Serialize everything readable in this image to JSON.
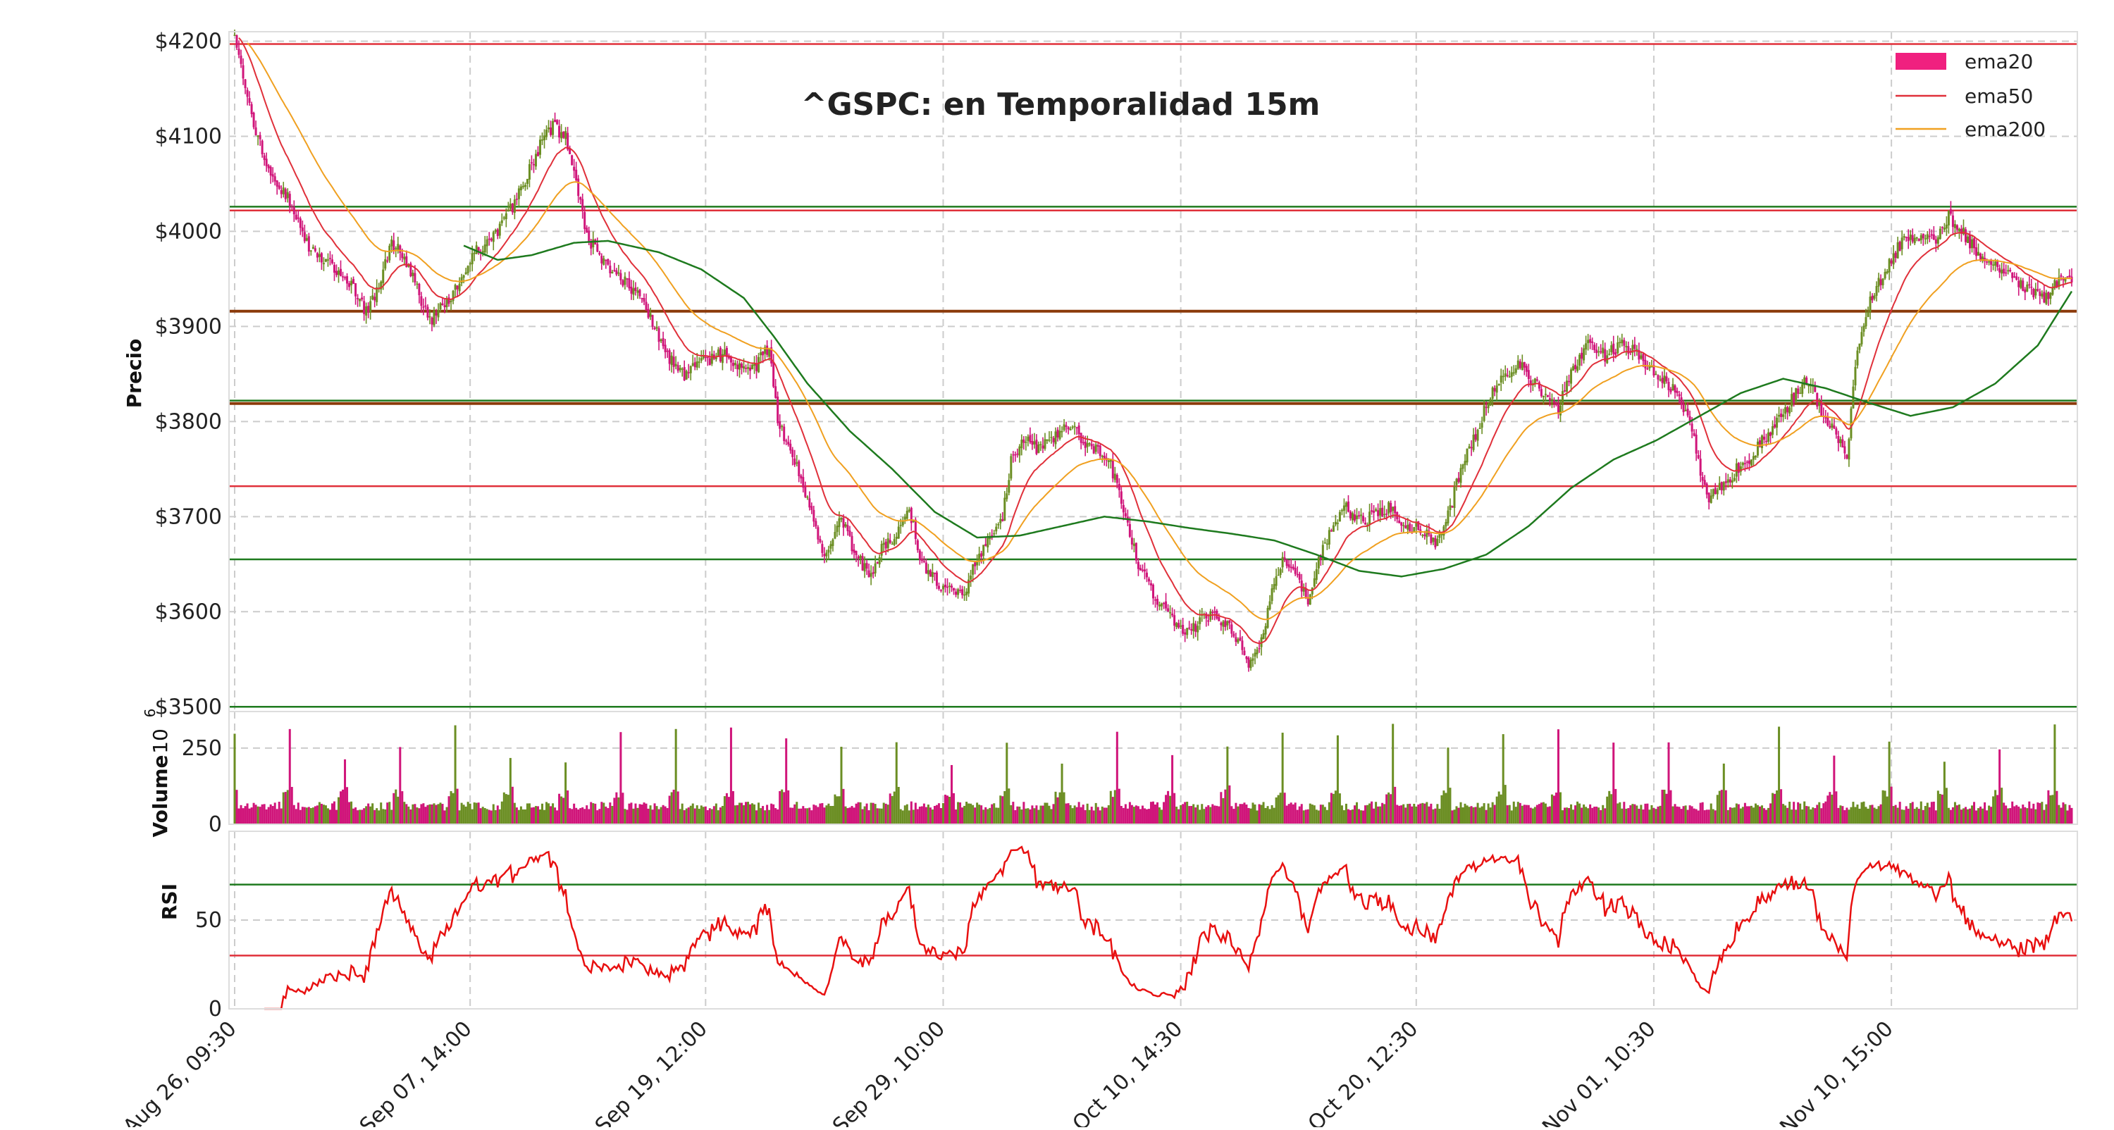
{
  "chart_data": {
    "type": "candlestick",
    "title": "^GSPC: en Temporalidad 15m",
    "colors": {
      "up": "#6b8e23",
      "down": "#d0157a",
      "ema_fast": "#e0303a",
      "ema_slow": "#f0a020",
      "ema_long": "#1e7a1e",
      "legend_ema20": "#f0207f",
      "support": "#1e7a1e",
      "resistance": "#e0303a",
      "level_3915": "#8b3a0a",
      "rsi_line": "#e81010",
      "rsi_hi": "#1e7a1e",
      "rsi_lo": "#e0303a",
      "grid": "#cccccc"
    },
    "legend": {
      "placement": "top-right",
      "entries": [
        {
          "label": "ema20",
          "kind": "patch",
          "color": "#f0207f"
        },
        {
          "label": "ema50",
          "kind": "line",
          "color": "#e0303a"
        },
        {
          "label": "ema200",
          "kind": "line",
          "color": "#f0a020"
        }
      ]
    },
    "price_panel": {
      "ylabel": "Precio",
      "ylim": [
        3495,
        4210
      ],
      "yticks": [
        3500,
        3600,
        3700,
        3800,
        3900,
        4000,
        4100,
        4200
      ],
      "ytick_labels": [
        "$3500",
        "$3600",
        "$3700",
        "$3800",
        "$3900",
        "$4000",
        "$4100",
        "$4200"
      ],
      "horizontal_levels": [
        {
          "value": 4197,
          "color": "#e0303a"
        },
        {
          "value": 4026,
          "color": "#1e7a1e"
        },
        {
          "value": 4022,
          "color": "#e0303a"
        },
        {
          "value": 3916,
          "color": "#8b3a0a"
        },
        {
          "value": 3822,
          "color": "#1e7a1e"
        },
        {
          "value": 3819,
          "color": "#8b3a0a"
        },
        {
          "value": 3732,
          "color": "#e0303a"
        },
        {
          "value": 3655,
          "color": "#1e7a1e"
        },
        {
          "value": 3500,
          "color": "#1e7a1e"
        }
      ],
      "close_anchors": [
        [
          0,
          4200
        ],
        [
          8,
          4120
        ],
        [
          16,
          4060
        ],
        [
          24,
          4040
        ],
        [
          36,
          3980
        ],
        [
          48,
          3960
        ],
        [
          58,
          3935
        ],
        [
          62,
          3915
        ],
        [
          68,
          3940
        ],
        [
          74,
          3990
        ],
        [
          80,
          3970
        ],
        [
          86,
          3940
        ],
        [
          92,
          3905
        ],
        [
          98,
          3920
        ],
        [
          106,
          3945
        ],
        [
          114,
          3980
        ],
        [
          124,
          4000
        ],
        [
          132,
          4030
        ],
        [
          138,
          4060
        ],
        [
          144,
          4090
        ],
        [
          150,
          4110
        ],
        [
          156,
          4100
        ],
        [
          162,
          4040
        ],
        [
          166,
          3995
        ],
        [
          174,
          3970
        ],
        [
          182,
          3950
        ],
        [
          190,
          3935
        ],
        [
          196,
          3910
        ],
        [
          204,
          3870
        ],
        [
          212,
          3850
        ],
        [
          222,
          3865
        ],
        [
          230,
          3870
        ],
        [
          238,
          3860
        ],
        [
          246,
          3860
        ],
        [
          252,
          3880
        ],
        [
          256,
          3800
        ],
        [
          262,
          3770
        ],
        [
          270,
          3720
        ],
        [
          278,
          3660
        ],
        [
          286,
          3700
        ],
        [
          292,
          3660
        ],
        [
          300,
          3640
        ],
        [
          306,
          3670
        ],
        [
          312,
          3680
        ],
        [
          318,
          3710
        ],
        [
          324,
          3650
        ],
        [
          332,
          3630
        ],
        [
          338,
          3620
        ],
        [
          344,
          3620
        ],
        [
          350,
          3655
        ],
        [
          356,
          3680
        ],
        [
          362,
          3700
        ],
        [
          366,
          3760
        ],
        [
          372,
          3780
        ],
        [
          380,
          3770
        ],
        [
          388,
          3790
        ],
        [
          394,
          3795
        ],
        [
          400,
          3780
        ],
        [
          406,
          3770
        ],
        [
          412,
          3760
        ],
        [
          418,
          3720
        ],
        [
          426,
          3650
        ],
        [
          434,
          3615
        ],
        [
          442,
          3590
        ],
        [
          450,
          3580
        ],
        [
          458,
          3595
        ],
        [
          466,
          3590
        ],
        [
          474,
          3570
        ],
        [
          478,
          3540
        ],
        [
          482,
          3555
        ],
        [
          488,
          3610
        ],
        [
          494,
          3660
        ],
        [
          500,
          3640
        ],
        [
          506,
          3610
        ],
        [
          512,
          3660
        ],
        [
          518,
          3690
        ],
        [
          524,
          3710
        ],
        [
          530,
          3695
        ],
        [
          536,
          3700
        ],
        [
          544,
          3710
        ],
        [
          552,
          3690
        ],
        [
          560,
          3685
        ],
        [
          566,
          3670
        ],
        [
          572,
          3700
        ],
        [
          578,
          3750
        ],
        [
          586,
          3790
        ],
        [
          592,
          3830
        ],
        [
          600,
          3850
        ],
        [
          606,
          3860
        ],
        [
          612,
          3840
        ],
        [
          618,
          3830
        ],
        [
          624,
          3815
        ],
        [
          630,
          3850
        ],
        [
          638,
          3880
        ],
        [
          646,
          3870
        ],
        [
          654,
          3880
        ],
        [
          662,
          3870
        ],
        [
          670,
          3850
        ],
        [
          676,
          3840
        ],
        [
          682,
          3820
        ],
        [
          688,
          3780
        ],
        [
          694,
          3720
        ],
        [
          700,
          3730
        ],
        [
          708,
          3750
        ],
        [
          714,
          3760
        ],
        [
          720,
          3780
        ],
        [
          728,
          3800
        ],
        [
          736,
          3830
        ],
        [
          742,
          3845
        ],
        [
          748,
          3810
        ],
        [
          754,
          3790
        ],
        [
          760,
          3760
        ],
        [
          764,
          3860
        ],
        [
          770,
          3920
        ],
        [
          778,
          3960
        ],
        [
          786,
          3990
        ],
        [
          794,
          3995
        ],
        [
          802,
          3990
        ],
        [
          808,
          4015
        ],
        [
          816,
          3995
        ],
        [
          824,
          3970
        ],
        [
          832,
          3960
        ],
        [
          840,
          3950
        ],
        [
          848,
          3935
        ],
        [
          854,
          3930
        ],
        [
          860,
          3950
        ],
        [
          866,
          3945
        ]
      ],
      "ema200_anchors": [
        [
          108,
          3985
        ],
        [
          124,
          3970
        ],
        [
          140,
          3975
        ],
        [
          160,
          3988
        ],
        [
          176,
          3990
        ],
        [
          200,
          3978
        ],
        [
          220,
          3960
        ],
        [
          240,
          3930
        ],
        [
          254,
          3890
        ],
        [
          270,
          3840
        ],
        [
          290,
          3790
        ],
        [
          310,
          3750
        ],
        [
          330,
          3705
        ],
        [
          350,
          3678
        ],
        [
          370,
          3680
        ],
        [
          390,
          3690
        ],
        [
          410,
          3700
        ],
        [
          430,
          3695
        ],
        [
          450,
          3688
        ],
        [
          470,
          3682
        ],
        [
          490,
          3675
        ],
        [
          510,
          3660
        ],
        [
          530,
          3643
        ],
        [
          550,
          3637
        ],
        [
          570,
          3645
        ],
        [
          590,
          3660
        ],
        [
          610,
          3690
        ],
        [
          630,
          3730
        ],
        [
          650,
          3760
        ],
        [
          670,
          3780
        ],
        [
          690,
          3805
        ],
        [
          710,
          3830
        ],
        [
          730,
          3845
        ],
        [
          750,
          3835
        ],
        [
          770,
          3820
        ],
        [
          790,
          3806
        ],
        [
          810,
          3815
        ],
        [
          830,
          3840
        ],
        [
          850,
          3880
        ],
        [
          866,
          3937
        ]
      ]
    },
    "volume_panel": {
      "ylabel": "Volume",
      "scale_label": "10",
      "scale_exp": "6",
      "ylim": [
        0,
        370
      ],
      "yticks": [
        0,
        250
      ],
      "ytick_labels": [
        "0",
        "250"
      ],
      "base": 60,
      "spike_period": 26,
      "spike_height": 255
    },
    "rsi_panel": {
      "ylabel": "RSI",
      "ylim": [
        0,
        100
      ],
      "yticks": [
        0,
        50
      ],
      "ytick_labels": [
        "0",
        "50"
      ],
      "upper": 70,
      "lower": 30
    },
    "x_axis": {
      "n_bars": 867,
      "ticks": [
        {
          "index": 0,
          "label": "Aug 26, 09:30"
        },
        {
          "index": 111,
          "label": "Sep 07, 14:00"
        },
        {
          "index": 222,
          "label": "Sep 19, 12:00"
        },
        {
          "index": 334,
          "label": "Sep 29, 10:00"
        },
        {
          "index": 446,
          "label": "Oct 10, 14:30"
        },
        {
          "index": 557,
          "label": "Oct 20, 12:30"
        },
        {
          "index": 669,
          "label": "Nov 01, 10:30"
        },
        {
          "index": 781,
          "label": "Nov 10, 15:00"
        }
      ]
    }
  }
}
